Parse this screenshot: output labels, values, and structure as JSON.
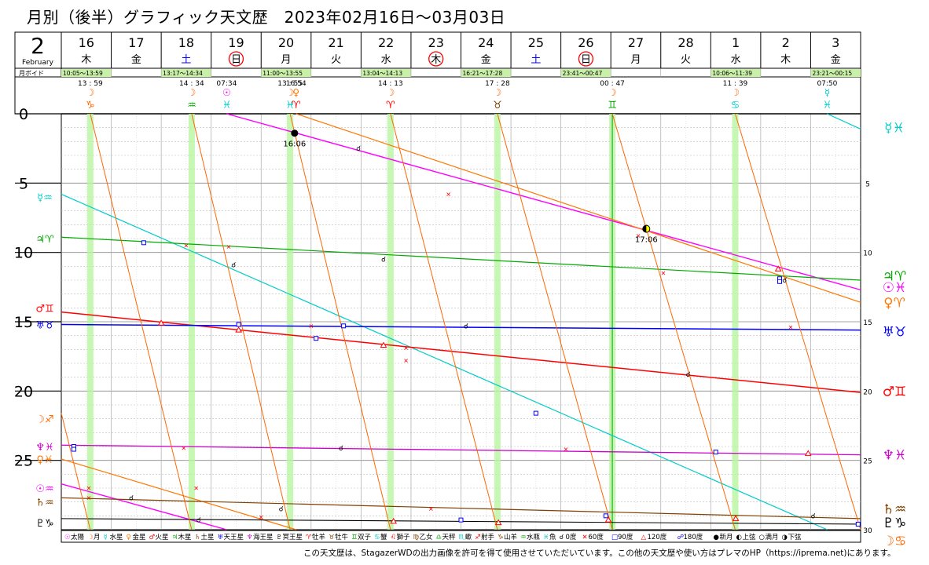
{
  "title": "月別（後半）グラフィック天文歴　2023年02月16日～03月03日",
  "footer": "この天文歴は、StagazerWDの出力画像を許可を得て使用させていただいています。この他の天文歴や使い方はプレマのHP（https://ipremа.net)にあります。",
  "colors": {
    "sun": "#ff00ff",
    "moon": "#ff6600",
    "mercury": "#00cccc",
    "venus": "#ff7700",
    "mars": "#ff0000",
    "jupiter": "#00aa00",
    "saturn": "#804000",
    "uranus": "#0000ff",
    "neptune": "#cc00cc",
    "pluto": "#000000",
    "sunday": "#ff0000",
    "saturday": "#0000ff",
    "void_band": "#c9f0a8",
    "ingress_band": "#b8f5a0"
  },
  "header": {
    "month_num": "2",
    "month_name": "February",
    "days": [
      {
        "n": "16",
        "w": "木",
        "type": "weekday"
      },
      {
        "n": "17",
        "w": "金",
        "type": "weekday"
      },
      {
        "n": "18",
        "w": "土",
        "type": "sat"
      },
      {
        "n": "19",
        "w": "日",
        "type": "sun"
      },
      {
        "n": "20",
        "w": "月",
        "type": "weekday"
      },
      {
        "n": "21",
        "w": "火",
        "type": "weekday"
      },
      {
        "n": "22",
        "w": "水",
        "type": "weekday"
      },
      {
        "n": "23",
        "w": "木",
        "type": "holiday"
      },
      {
        "n": "24",
        "w": "金",
        "type": "weekday"
      },
      {
        "n": "25",
        "w": "土",
        "type": "sat"
      },
      {
        "n": "26",
        "w": "日",
        "type": "sun"
      },
      {
        "n": "27",
        "w": "月",
        "type": "weekday"
      },
      {
        "n": "28",
        "w": "火",
        "type": "weekday"
      },
      {
        "n": "1",
        "w": "水",
        "type": "weekday"
      },
      {
        "n": "2",
        "w": "木",
        "type": "weekday"
      },
      {
        "n": "3",
        "w": "金",
        "type": "weekday"
      }
    ]
  },
  "void_label": "月ボイド",
  "voids": [
    {
      "start": 0.0,
      "end": 1.0,
      "label": "10:05～13:59"
    },
    {
      "start": 2.0,
      "end": 3.0,
      "label": "13:17～14:34"
    },
    {
      "start": 4.0,
      "end": 5.0,
      "label": "11:00～13:55"
    },
    {
      "start": 6.0,
      "end": 7.0,
      "label": "13:04～14:13"
    },
    {
      "start": 8.0,
      "end": 9.0,
      "label": "16:21～17:28"
    },
    {
      "start": 10.0,
      "end": 11.0,
      "label": "23:41～00:47"
    },
    {
      "start": 13.0,
      "end": 14.0,
      "label": "10:06～11:39"
    },
    {
      "start": 15.0,
      "end": 16.0,
      "label": "23:21～00:15"
    }
  ],
  "ingresses": [
    {
      "day": 0.58,
      "time": "13 : 59",
      "glyphs": [
        "☽",
        "♑"
      ],
      "colors": [
        "#ff6600",
        "#ff6600"
      ]
    },
    {
      "day": 2.61,
      "time": "14 : 34",
      "glyphs": [
        "☽",
        "♒"
      ],
      "colors": [
        "#ff6600",
        "#00aa00"
      ]
    },
    {
      "day": 3.31,
      "time": "07:34",
      "glyphs": [
        "☉",
        "♓"
      ],
      "colors": [
        "#ff00ff",
        "#00cccc"
      ]
    },
    {
      "day": 4.58,
      "time": "13 : 55",
      "glyphs": [
        "☽",
        "♓"
      ],
      "colors": [
        "#ff6600",
        "#00cccc"
      ]
    },
    {
      "day": 4.7,
      "time": "16:54",
      "glyphs": [
        "♀",
        "♈"
      ],
      "colors": [
        "#ff7700",
        "#ff0000"
      ]
    },
    {
      "day": 6.59,
      "time": "14 : 13",
      "glyphs": [
        "☽",
        "♈"
      ],
      "colors": [
        "#ff6600",
        "#ff0000"
      ]
    },
    {
      "day": 8.73,
      "time": "17 : 28",
      "glyphs": [
        "☽",
        "♉"
      ],
      "colors": [
        "#ff6600",
        "#804000"
      ]
    },
    {
      "day": 11.03,
      "time": "00 : 47",
      "glyphs": [
        "☽",
        "♊"
      ],
      "colors": [
        "#ff6600",
        "#00aa00"
      ]
    },
    {
      "day": 13.49,
      "time": "11 : 39",
      "glyphs": [
        "☽",
        "♋"
      ],
      "colors": [
        "#ff6600",
        "#00cccc"
      ]
    },
    {
      "day": 15.33,
      "time": "07:50",
      "glyphs": [
        "☿",
        "♓"
      ],
      "colors": [
        "#00cccc",
        "#00cccc"
      ]
    }
  ],
  "left_labels": [
    {
      "deg": 6,
      "text": "☿♒",
      "color": "#00cccc"
    },
    {
      "deg": 9,
      "text": "♃♈",
      "color": "#00aa00"
    },
    {
      "deg": 14,
      "text": "♂♊",
      "color": "#ff0000"
    },
    {
      "deg": 15.2,
      "text": "♅♉",
      "color": "#0000ff"
    },
    {
      "deg": 22,
      "text": "☽♐",
      "color": "#ff6600"
    },
    {
      "deg": 24,
      "text": "♆♓",
      "color": "#cc00cc"
    },
    {
      "deg": 24.9,
      "text": "♀♓",
      "color": "#ff7700"
    },
    {
      "deg": 27,
      "text": "☉♒",
      "color": "#ff00ff"
    },
    {
      "deg": 28,
      "text": "♄♒",
      "color": "#804000"
    },
    {
      "deg": 29.5,
      "text": "♇♑",
      "color": "#000000"
    }
  ],
  "right_labels": [
    {
      "deg": 1,
      "text": "☿♓",
      "color": "#00cccc"
    },
    {
      "deg": 11.7,
      "text": "♃♈",
      "color": "#00aa00"
    },
    {
      "deg": 12.5,
      "text": "☉♓",
      "color": "#ff00ff"
    },
    {
      "deg": 13.6,
      "text": "♀♈",
      "color": "#ff7700"
    },
    {
      "deg": 15.7,
      "text": "♅♉",
      "color": "#0000ff"
    },
    {
      "deg": 20,
      "text": "♂♊",
      "color": "#ff0000"
    },
    {
      "deg": 24.6,
      "text": "♆♓",
      "color": "#cc00cc"
    },
    {
      "deg": 28.5,
      "text": "♄♒",
      "color": "#804000"
    },
    {
      "deg": 29.5,
      "text": "♇♑",
      "color": "#000000"
    },
    {
      "deg": 30.8,
      "text": "☽♋",
      "color": "#ff6600"
    }
  ],
  "events": [
    {
      "type": "new_moon",
      "day": 4.67,
      "deg": 1.4,
      "label": "16:06"
    },
    {
      "type": "first_quarter",
      "day": 11.71,
      "deg": 8.3,
      "label": "17:06"
    }
  ],
  "legend": [
    {
      "glyph": "☉",
      "name": "太陽",
      "color": "#ff00ff"
    },
    {
      "glyph": "☽",
      "name": "月",
      "color": "#ff6600"
    },
    {
      "glyph": "☿",
      "name": "水星",
      "color": "#00cccc"
    },
    {
      "glyph": "♀",
      "name": "金星",
      "color": "#ff7700"
    },
    {
      "glyph": "♂",
      "name": "火星",
      "color": "#ff0000"
    },
    {
      "glyph": "♃",
      "name": "木星",
      "color": "#00aa00"
    },
    {
      "glyph": "♄",
      "name": "土星",
      "color": "#804000"
    },
    {
      "glyph": "♅",
      "name": "天王星",
      "color": "#0000ff"
    },
    {
      "glyph": "♆",
      "name": "海王星",
      "color": "#cc00cc"
    },
    {
      "glyph": "♇",
      "name": "冥王星",
      "color": "#000000"
    },
    {
      "glyph": "♈",
      "name": "牡羊",
      "color": "#ff0000"
    },
    {
      "glyph": "♉",
      "name": "牡牛",
      "color": "#804000"
    },
    {
      "glyph": "♊",
      "name": "双子",
      "color": "#00aa00"
    },
    {
      "glyph": "♋",
      "name": "蟹",
      "color": "#00cccc"
    },
    {
      "glyph": "♌",
      "name": "獅子",
      "color": "#ff0000"
    },
    {
      "glyph": "♍",
      "name": "乙女",
      "color": "#804000"
    },
    {
      "glyph": "♎",
      "name": "天秤",
      "color": "#00aa00"
    },
    {
      "glyph": "♏",
      "name": "蠍",
      "color": "#00cccc"
    },
    {
      "glyph": "♐",
      "name": "射手",
      "color": "#ff0000"
    },
    {
      "glyph": "♑",
      "name": "山羊",
      "color": "#804000"
    },
    {
      "glyph": "♒",
      "name": "水瓶",
      "color": "#00aa00"
    },
    {
      "glyph": "♓",
      "name": "魚",
      "color": "#00cccc"
    },
    {
      "glyph": "☌",
      "name": "0度",
      "color": "#000000"
    },
    {
      "glyph": "✕",
      "name": "60度",
      "color": "#ff0000"
    },
    {
      "glyph": "□",
      "name": "90度",
      "color": "#0000ff"
    },
    {
      "glyph": "△",
      "name": "120度",
      "color": "#ff0000"
    },
    {
      "glyph": "☍",
      "name": "180度",
      "color": "#0000ff"
    },
    {
      "glyph": "●",
      "name": "新月",
      "color": "#000000"
    },
    {
      "glyph": "◐",
      "name": "上弦",
      "color": "#000000"
    },
    {
      "glyph": "○",
      "name": "満月",
      "color": "#000000"
    },
    {
      "glyph": "◑",
      "name": "下弦",
      "color": "#000000"
    }
  ],
  "chart_data": {
    "type": "line",
    "x_unit": "days from 2023-02-16 00:00",
    "x_range": [
      0,
      16
    ],
    "y_unit": "degrees within sign",
    "y_range": [
      0,
      30
    ],
    "y_major_ticks": [
      0,
      5,
      10,
      15,
      20,
      25
    ],
    "y_right_ticks": [
      5,
      10,
      15,
      20,
      25,
      30
    ],
    "series": [
      {
        "name": "☉",
        "color": "#ff00ff",
        "width": 1.4,
        "points": [
          [
            0,
            26.7
          ],
          [
            3.31,
            30
          ]
        ]
      },
      {
        "name": "☉",
        "color": "#ff00ff",
        "width": 1.4,
        "points": [
          [
            3.31,
            0
          ],
          [
            16,
            12.7
          ]
        ]
      },
      {
        "name": "☿",
        "color": "#00cccc",
        "width": 1.2,
        "points": [
          [
            0,
            5.8
          ],
          [
            15.33,
            30
          ]
        ]
      },
      {
        "name": "☿",
        "color": "#00cccc",
        "width": 1.2,
        "points": [
          [
            15.33,
            0
          ],
          [
            16,
            1.1
          ]
        ]
      },
      {
        "name": "♀",
        "color": "#ff7700",
        "width": 1.2,
        "points": [
          [
            0,
            24.9
          ],
          [
            4.7,
            30
          ]
        ]
      },
      {
        "name": "♀",
        "color": "#ff7700",
        "width": 1.2,
        "points": [
          [
            4.7,
            0
          ],
          [
            16,
            13.6
          ]
        ]
      },
      {
        "name": "♂",
        "color": "#ff0000",
        "width": 1.5,
        "points": [
          [
            0,
            14.3
          ],
          [
            16,
            20.1
          ]
        ]
      },
      {
        "name": "♃",
        "color": "#00aa00",
        "width": 1.2,
        "points": [
          [
            0,
            8.9
          ],
          [
            16,
            12.0
          ]
        ]
      },
      {
        "name": "♄",
        "color": "#804000",
        "width": 1.2,
        "points": [
          [
            0,
            27.7
          ],
          [
            16,
            29.2
          ]
        ]
      },
      {
        "name": "♅",
        "color": "#0000ff",
        "width": 1.5,
        "points": [
          [
            0,
            15.2
          ],
          [
            16,
            15.6
          ]
        ]
      },
      {
        "name": "♆",
        "color": "#cc00cc",
        "width": 1.3,
        "points": [
          [
            0,
            23.9
          ],
          [
            16,
            24.6
          ]
        ]
      },
      {
        "name": "♇",
        "color": "#000000",
        "width": 1.1,
        "points": [
          [
            0,
            29.2
          ],
          [
            16,
            29.6
          ]
        ]
      },
      {
        "name": "☽",
        "color": "#ff6600",
        "width": 1.0,
        "points": [
          [
            0,
            21.6
          ],
          [
            0.58,
            30
          ]
        ]
      },
      {
        "name": "☽",
        "color": "#ff6600",
        "width": 1.0,
        "points": [
          [
            0.58,
            0
          ],
          [
            2.61,
            30
          ]
        ]
      },
      {
        "name": "☽",
        "color": "#ff6600",
        "width": 1.0,
        "points": [
          [
            2.61,
            0
          ],
          [
            4.58,
            30
          ]
        ]
      },
      {
        "name": "☽",
        "color": "#ff6600",
        "width": 1.0,
        "points": [
          [
            4.58,
            0
          ],
          [
            6.59,
            30
          ]
        ]
      },
      {
        "name": "☽",
        "color": "#ff6600",
        "width": 1.0,
        "points": [
          [
            6.59,
            0
          ],
          [
            8.73,
            30
          ]
        ]
      },
      {
        "name": "☽",
        "color": "#ff6600",
        "width": 1.0,
        "points": [
          [
            8.73,
            0
          ],
          [
            11.03,
            30
          ]
        ]
      },
      {
        "name": "☽",
        "color": "#ff6600",
        "width": 1.0,
        "points": [
          [
            11.03,
            0
          ],
          [
            13.49,
            30
          ]
        ]
      },
      {
        "name": "☽",
        "color": "#ff6600",
        "width": 1.0,
        "points": [
          [
            13.49,
            0
          ],
          [
            16,
            30
          ]
        ]
      }
    ],
    "aspects": [
      {
        "day": 0.55,
        "deg": 27.0,
        "sym": "✕",
        "color": "#ff0000"
      },
      {
        "day": 0.55,
        "deg": 27.7,
        "sym": "✕",
        "color": "#ff0000"
      },
      {
        "day": 1.4,
        "deg": 27.7,
        "sym": "☌",
        "color": "#000000"
      },
      {
        "day": 0.25,
        "deg": 24.0,
        "sym": "□",
        "color": "#0000ff"
      },
      {
        "day": 0.25,
        "deg": 24.2,
        "sym": "□",
        "color": "#0000ff"
      },
      {
        "day": 1.65,
        "deg": 9.3,
        "sym": "□",
        "color": "#0000ff"
      },
      {
        "day": 2.5,
        "deg": 9.5,
        "sym": "✕",
        "color": "#ff0000"
      },
      {
        "day": 2.0,
        "deg": 15.1,
        "sym": "△",
        "color": "#ff0000"
      },
      {
        "day": 2.45,
        "deg": 24.1,
        "sym": "✕",
        "color": "#ff0000"
      },
      {
        "day": 2.7,
        "deg": 27.0,
        "sym": "✕",
        "color": "#ff0000"
      },
      {
        "day": 2.75,
        "deg": 29.3,
        "sym": "☌",
        "color": "#000000"
      },
      {
        "day": 3.35,
        "deg": 9.6,
        "sym": "✕",
        "color": "#ff0000"
      },
      {
        "day": 3.45,
        "deg": 10.9,
        "sym": "☌",
        "color": "#000000"
      },
      {
        "day": 3.55,
        "deg": 15.2,
        "sym": "□",
        "color": "#0000ff"
      },
      {
        "day": 3.55,
        "deg": 15.6,
        "sym": "△",
        "color": "#ff0000"
      },
      {
        "day": 4.0,
        "deg": 29.1,
        "sym": "✕",
        "color": "#ff0000"
      },
      {
        "day": 4.4,
        "deg": 28.5,
        "sym": "☌",
        "color": "#000000"
      },
      {
        "day": 5.0,
        "deg": 15.3,
        "sym": "✕",
        "color": "#ff0000"
      },
      {
        "day": 5.1,
        "deg": 16.2,
        "sym": "□",
        "color": "#0000ff"
      },
      {
        "day": 5.65,
        "deg": 15.3,
        "sym": "□",
        "color": "#0000ff"
      },
      {
        "day": 5.6,
        "deg": 24.1,
        "sym": "☌",
        "color": "#000000"
      },
      {
        "day": 6.45,
        "deg": 10.5,
        "sym": "☌",
        "color": "#000000"
      },
      {
        "day": 6.45,
        "deg": 16.7,
        "sym": "△",
        "color": "#ff0000"
      },
      {
        "day": 6.9,
        "deg": 16.9,
        "sym": "✕",
        "color": "#ff0000"
      },
      {
        "day": 6.9,
        "deg": 17.8,
        "sym": "✕",
        "color": "#ff0000"
      },
      {
        "day": 5.95,
        "deg": 2.5,
        "sym": "☌",
        "color": "#000000"
      },
      {
        "day": 6.65,
        "deg": 29.4,
        "sym": "△",
        "color": "#ff0000"
      },
      {
        "day": 7.75,
        "deg": 5.8,
        "sym": "✕",
        "color": "#ff0000"
      },
      {
        "day": 7.4,
        "deg": 28.5,
        "sym": "✕",
        "color": "#ff0000"
      },
      {
        "day": 8.1,
        "deg": 15.3,
        "sym": "☌",
        "color": "#000000"
      },
      {
        "day": 8.0,
        "deg": 29.3,
        "sym": "□",
        "color": "#0000ff"
      },
      {
        "day": 8.75,
        "deg": 29.5,
        "sym": "△",
        "color": "#ff0000"
      },
      {
        "day": 9.5,
        "deg": 21.6,
        "sym": "□",
        "color": "#0000ff"
      },
      {
        "day": 10.1,
        "deg": 24.2,
        "sym": "✕",
        "color": "#ff0000"
      },
      {
        "day": 10.9,
        "deg": 29.0,
        "sym": "□",
        "color": "#0000ff"
      },
      {
        "day": 10.95,
        "deg": 29.3,
        "sym": "△",
        "color": "#ff0000"
      },
      {
        "day": 11.55,
        "deg": 8.8,
        "sym": "✕",
        "color": "#ff0000"
      },
      {
        "day": 12.05,
        "deg": 11.5,
        "sym": "✕",
        "color": "#ff0000"
      },
      {
        "day": 12.55,
        "deg": 18.8,
        "sym": "☌",
        "color": "#000000"
      },
      {
        "day": 13.1,
        "deg": 24.4,
        "sym": "□",
        "color": "#0000ff"
      },
      {
        "day": 13.5,
        "deg": 29.2,
        "sym": "△",
        "color": "#ff0000"
      },
      {
        "day": 14.35,
        "deg": 11.2,
        "sym": "△",
        "color": "#ff0000"
      },
      {
        "day": 14.38,
        "deg": 11.9,
        "sym": "□",
        "color": "#0000ff"
      },
      {
        "day": 14.38,
        "deg": 12.1,
        "sym": "□",
        "color": "#0000ff"
      },
      {
        "day": 14.48,
        "deg": 12.0,
        "sym": "☌",
        "color": "#000000"
      },
      {
        "day": 14.6,
        "deg": 15.4,
        "sym": "✕",
        "color": "#ff0000"
      },
      {
        "day": 14.95,
        "deg": 24.5,
        "sym": "△",
        "color": "#ff0000"
      },
      {
        "day": 15.05,
        "deg": 29.0,
        "sym": "☌",
        "color": "#000000"
      },
      {
        "day": 15.95,
        "deg": 29.6,
        "sym": "□",
        "color": "#0000ff"
      }
    ]
  }
}
